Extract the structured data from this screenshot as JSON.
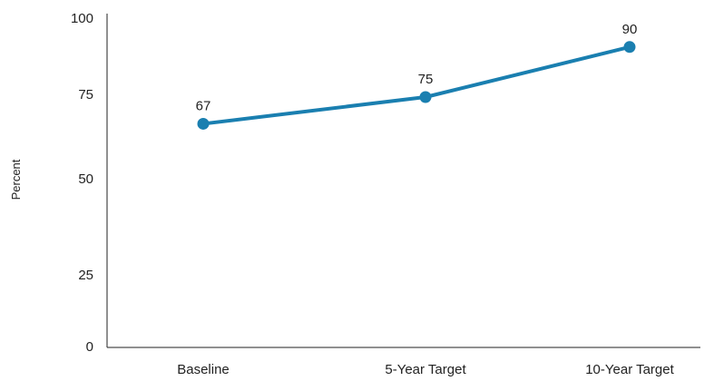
{
  "chart_data": {
    "type": "line",
    "title": "",
    "xlabel": "",
    "ylabel": "Percent",
    "categories": [
      "Baseline",
      "5-Year Target",
      "10-Year Target"
    ],
    "series": [
      {
        "values": [
          67,
          75,
          90
        ]
      }
    ],
    "data_labels": [
      "67",
      "75",
      "90"
    ],
    "y_ticks": [
      "0",
      "25",
      "50",
      "75",
      "100"
    ],
    "y_tick_values": [
      0,
      25,
      50,
      75,
      100
    ],
    "ylim": [
      0,
      100
    ],
    "grid": false,
    "legend": "none",
    "colors": {
      "series": "#1a7fb0",
      "axis": "#222222"
    }
  }
}
